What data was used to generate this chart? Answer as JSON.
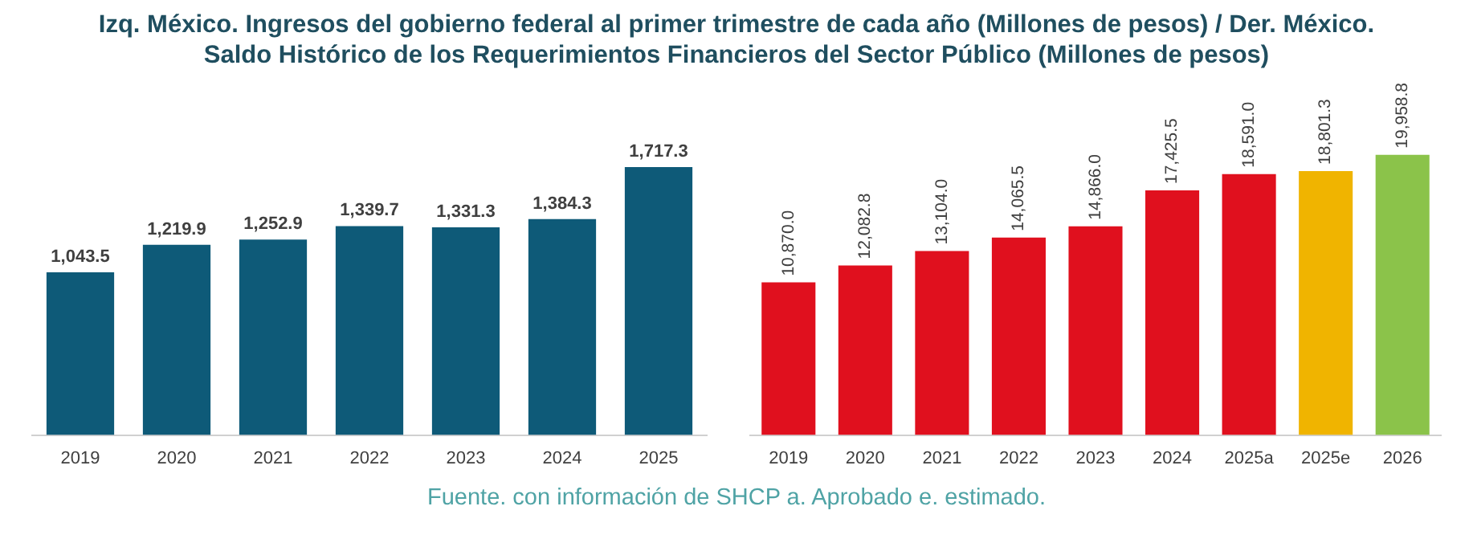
{
  "chart_data": [
    {
      "type": "bar",
      "title": "Izq. México. Ingresos del gobierno federal al primer trimestre de cada año (Millones de pesos) / Der. México. Saldo Histórico de los Requerimientos Financieros del Sector Público (Millones de pesos)",
      "tick_labels": "x",
      "categories": [
        "2019",
        "2020",
        "2021",
        "2022",
        "2023",
        "2024",
        "2025"
      ],
      "values": [
        1043.5,
        1219.9,
        1252.9,
        1339.7,
        1331.3,
        1384.3,
        1717.3
      ],
      "value_labels": [
        "1,043.5",
        "1,219.9",
        "1,252.9",
        "1,339.7",
        "1,331.3",
        "1,384.3",
        "1,717.3"
      ],
      "colors": [
        "#0e5a78",
        "#0e5a78",
        "#0e5a78",
        "#0e5a78",
        "#0e5a78",
        "#0e5a78",
        "#0e5a78"
      ]
    },
    {
      "type": "bar",
      "tick_labels": "x",
      "annotations": [
        "Fuente. con información de SHCP a. Aprobado e. estimado."
      ],
      "categories": [
        "2019",
        "2020",
        "2021",
        "2022",
        "2023",
        "2024",
        "2025a",
        "2025e",
        "2026"
      ],
      "values": [
        10870.0,
        12082.8,
        13104.0,
        14065.5,
        14866.0,
        17425.5,
        18591.0,
        18801.3,
        19958.8
      ],
      "value_labels": [
        "10,870.0",
        "12,082.8",
        "13,104.0",
        "14,065.5",
        "14,866.0",
        "17,425.5",
        "18,591.0",
        "18,801.3",
        "19,958.8"
      ],
      "colors": [
        "#e0101e",
        "#e0101e",
        "#e0101e",
        "#e0101e",
        "#e0101e",
        "#e0101e",
        "#e0101e",
        "#f0b400",
        "#8bc34a"
      ]
    }
  ]
}
